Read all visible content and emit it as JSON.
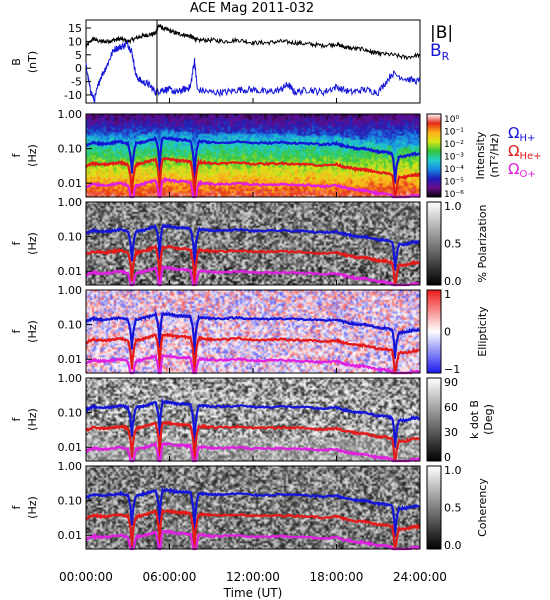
{
  "title": "ACE Mag 2011-032",
  "x_axis": {
    "label": "Time (UT)",
    "ticks": [
      "00:00:00",
      "06:00:00",
      "12:00:00",
      "18:00:00",
      "24:00:00"
    ],
    "range_hours": [
      0,
      24
    ]
  },
  "gyro_labels": {
    "h": {
      "symbol": "Ω",
      "sub": "H+",
      "color": "#1515d8"
    },
    "he": {
      "symbol": "Ω",
      "sub": "He+",
      "color": "#e41a1a"
    },
    "o": {
      "symbol": "Ω",
      "sub": "O+",
      "color": "#e020e0"
    }
  },
  "chart_data": [
    {
      "type": "line",
      "name": "magnetic-field",
      "ylabel": "B (nT)",
      "ylabel_line1": "B",
      "ylabel_line2": "(nT)",
      "ylim": [
        -13,
        18
      ],
      "yticks": [
        15,
        10,
        5,
        0,
        -5,
        -10
      ],
      "x_unit": "hours UT",
      "legend": {
        "position": "right"
      },
      "series": [
        {
          "name": "|B|",
          "color": "#000000",
          "x": [
            0,
            0.5,
            1,
            1.5,
            2,
            2.5,
            3,
            3.5,
            4,
            4.5,
            5,
            5.2,
            5.5,
            6,
            6.5,
            7,
            7.5,
            7.8,
            8,
            9,
            10,
            11,
            12,
            13,
            14,
            15,
            16,
            17,
            18,
            18.5,
            19,
            20,
            20.5,
            21,
            22,
            23,
            24
          ],
          "y": [
            8,
            11,
            10,
            10,
            10.5,
            11,
            10,
            11,
            12,
            12.5,
            13,
            16,
            15,
            14,
            13,
            12.5,
            12,
            11,
            10.5,
            10.5,
            10,
            10.5,
            9.5,
            9.5,
            10,
            9.5,
            9,
            8.5,
            9,
            8,
            7.5,
            7,
            6,
            5.5,
            5,
            4,
            5
          ]
        },
        {
          "name": "B",
          "sub": "R",
          "color": "#1515d8",
          "x": [
            0,
            0.3,
            0.6,
            1,
            1.5,
            2,
            2.5,
            3,
            3.3,
            3.6,
            4,
            4.5,
            5,
            5.5,
            6,
            6.5,
            7,
            7.5,
            7.8,
            8,
            9,
            10,
            11,
            12,
            13,
            14,
            14.5,
            15,
            16,
            17,
            18,
            19,
            20,
            21,
            22,
            23,
            24
          ],
          "y": [
            1,
            -8,
            -12,
            -4,
            1,
            7,
            8,
            9,
            6,
            -3,
            -5,
            -6,
            -9,
            -8,
            -8,
            -9,
            -8,
            -7,
            3,
            -8,
            -9,
            -9,
            -8,
            -8,
            -9,
            -8,
            -6,
            -9,
            -8,
            -9,
            -7,
            -9,
            -8,
            -9,
            -2,
            -4,
            -5
          ]
        }
      ]
    },
    {
      "type": "heatmap",
      "name": "power-spectrum",
      "ylabel": "f (Hz)",
      "ylabel_line1": "f",
      "ylabel_line2": "(Hz)",
      "y_scale": "log",
      "ylim": [
        0.004,
        1
      ],
      "yticks": [
        "1.00",
        "0.10",
        "0.01"
      ],
      "colorbar": {
        "label": "Intensity (nT²/Hz)",
        "label_line1": "Intensity",
        "label_line2": "(nT²/Hz)",
        "scale": "log",
        "ticks": [
          "10⁰",
          "10⁻¹",
          "10⁻²",
          "10⁻³",
          "10⁻⁴",
          "10⁻⁵",
          "10⁻⁶"
        ],
        "colors": [
          "#000000",
          "#6a0d8e",
          "#1e1eb8",
          "#1a8ae6",
          "#22d2c8",
          "#36c43a",
          "#d7e81a",
          "#ffb01a",
          "#e42a1a",
          "#ffffff"
        ]
      }
    },
    {
      "type": "heatmap",
      "name": "polarization",
      "ylabel": "f (Hz)",
      "ylabel_line1": "f",
      "ylabel_line2": "(Hz)",
      "y_scale": "log",
      "ylim": [
        0.004,
        1
      ],
      "yticks": [
        "1.00",
        "0.10",
        "0.01"
      ],
      "colorbar": {
        "label": "% Polarization",
        "ticks": [
          "1.0",
          "0.5",
          "0.0"
        ],
        "colors": [
          "#000000",
          "#ffffff"
        ]
      }
    },
    {
      "type": "heatmap",
      "name": "ellipticity",
      "ylabel": "f (Hz)",
      "ylabel_line1": "f",
      "ylabel_line2": "(Hz)",
      "y_scale": "log",
      "ylim": [
        0.004,
        1
      ],
      "yticks": [
        "1.00",
        "0.10",
        "0.01"
      ],
      "colorbar": {
        "label": "Ellipticity",
        "ticks": [
          "1",
          "0",
          "−1"
        ],
        "colors": [
          "#1a1aee",
          "#ffffff",
          "#ee1a1a"
        ]
      }
    },
    {
      "type": "heatmap",
      "name": "wave-normal-angle",
      "ylabel": "f (Hz)",
      "ylabel_line1": "f",
      "ylabel_line2": "(Hz)",
      "y_scale": "log",
      "ylim": [
        0.004,
        1
      ],
      "yticks": [
        "1.00",
        "0.10",
        "0.01"
      ],
      "colorbar": {
        "label": "k dot B (Deg)",
        "label_line1": "k dot B",
        "label_line2": "(Deg)",
        "ticks": [
          "90",
          "60",
          "30",
          "0"
        ],
        "colors": [
          "#000000",
          "#ffffff"
        ]
      }
    },
    {
      "type": "heatmap",
      "name": "coherency",
      "ylabel": "f (Hz)",
      "ylabel_line1": "f",
      "ylabel_line2": "(Hz)",
      "y_scale": "log",
      "ylim": [
        0.004,
        1
      ],
      "yticks": [
        "1.00",
        "0.10",
        "0.01"
      ],
      "colorbar": {
        "label": "Coherency",
        "ticks": [
          "1.0",
          "0.5",
          "0.0"
        ],
        "colors": [
          "#000000",
          "#ffffff"
        ]
      }
    }
  ],
  "gyrofrequency_lines": {
    "x": [
      0,
      0.5,
      1,
      1.5,
      2,
      2.5,
      3,
      3.3,
      3.6,
      4,
      4.5,
      5,
      5.3,
      5.5,
      6,
      6.5,
      7,
      7.5,
      7.8,
      8.1,
      8.5,
      9,
      10,
      11,
      12,
      13,
      14,
      15,
      16,
      17,
      18,
      18.5,
      19,
      19.5,
      20,
      20.5,
      21,
      21.5,
      22,
      22.2,
      22.5,
      23,
      23.5,
      24
    ],
    "h_hz": [
      0.12,
      0.15,
      0.14,
      0.14,
      0.15,
      0.16,
      0.14,
      0.02,
      0.14,
      0.15,
      0.17,
      0.2,
      0.02,
      0.2,
      0.2,
      0.18,
      0.18,
      0.17,
      0.01,
      0.16,
      0.16,
      0.15,
      0.15,
      0.16,
      0.145,
      0.145,
      0.15,
      0.145,
      0.14,
      0.13,
      0.14,
      0.12,
      0.11,
      0.1,
      0.1,
      0.09,
      0.08,
      0.08,
      0.07,
      0.01,
      0.06,
      0.06,
      0.07,
      0.07
    ],
    "he_factor": 0.25,
    "o_factor": 0.0625,
    "colors": {
      "h": "#1515d8",
      "he": "#e41a1a",
      "o": "#e020e0"
    }
  }
}
